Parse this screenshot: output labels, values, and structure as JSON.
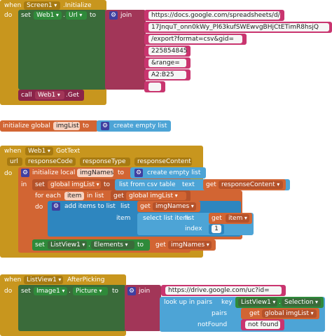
{
  "screen_init": {
    "when": "when",
    "component": "Screen1",
    "event": ".Initialize",
    "do": "do",
    "set": "set",
    "target": "Web1",
    "property": "Url",
    "to": "to",
    "join": "join",
    "join_parts": [
      "https://docs.google.com/spreadsheets/d/",
      "17JnquT_onn0kWy_Pl63kufSWEwvgBHjCtETimR8hsjQ",
      "/export?format=csv&gid=",
      "225854845",
      "&range=",
      "A2:B25",
      ""
    ],
    "call": "call",
    "call_component": "Web1",
    "call_method": ".Get"
  },
  "global_var": {
    "init": "initialize global",
    "name": "imgList",
    "to": "to",
    "value": "create empty list"
  },
  "got_text": {
    "when": "when",
    "component": "Web1",
    "event": "GotText",
    "params": [
      "url",
      "responseCode",
      "responseType",
      "responseContent"
    ],
    "do": "do",
    "init_local": "initialize local",
    "local_name": "imgNames",
    "to": "to",
    "local_value": "create empty list",
    "in": "in",
    "set": "set",
    "set_global": "global imgList",
    "list_from_csv": "list from csv table",
    "text": "text",
    "get": "get",
    "response_content": "responseContent",
    "for_each": "for each",
    "item_var": "item",
    "in_list": "in list",
    "get_global_imglist": "global imgList",
    "do2": "do",
    "add_items": "add items to list",
    "list_label": "list",
    "img_names": "imgNames",
    "item_label": "item",
    "select_list_item": "select list item",
    "list2": "list",
    "item_get": "item",
    "index": "index",
    "index_value": "1",
    "set_elements_target": "ListView1",
    "elements_prop": "Elements",
    "elements_value": "imgNames"
  },
  "after_picking": {
    "when": "when",
    "component": "ListView1",
    "event": "AfterPicking",
    "do": "do",
    "set": "set",
    "target": "Image1",
    "property": "Picture",
    "to": "to",
    "join": "join",
    "url_prefix": "https://drive.google.com/uc?id=",
    "lookup": "look up in pairs",
    "key": "key",
    "key_component": "ListView1",
    "key_prop": "Selection",
    "pairs": "pairs",
    "get": "get",
    "pairs_value": "global imgList",
    "not_found": "notFound",
    "not_found_value": "not found"
  }
}
